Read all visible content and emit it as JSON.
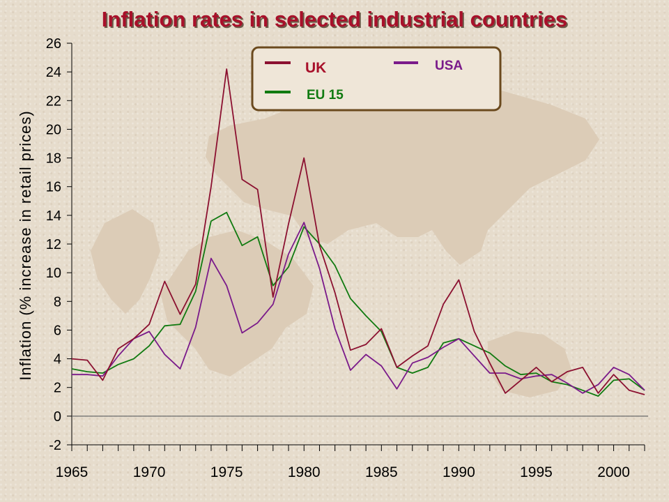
{
  "chart_data": {
    "type": "line",
    "title": "Inflation rates in selected industrial countries",
    "ylabel": "Inflation (% increase in retail prices)",
    "xlabel": "",
    "ylim": [
      -2,
      26
    ],
    "xlim": [
      1965,
      2002
    ],
    "yticks": [
      -2,
      0,
      2,
      4,
      6,
      8,
      10,
      12,
      14,
      16,
      18,
      20,
      22,
      24,
      26
    ],
    "xticks": [
      1965,
      1970,
      1975,
      1980,
      1985,
      1990,
      1995,
      2000
    ],
    "grid": false,
    "legend_position": "top-center",
    "series": [
      {
        "name": "UK",
        "color": "#8b1030",
        "x": [
          1965,
          1966,
          1967,
          1968,
          1969,
          1970,
          1971,
          1972,
          1973,
          1974,
          1975,
          1976,
          1977,
          1978,
          1979,
          1980,
          1981,
          1982,
          1983,
          1984,
          1985,
          1986,
          1987,
          1988,
          1989,
          1990,
          1991,
          1992,
          1993,
          1994,
          1995,
          1996,
          1997,
          1998,
          1999,
          2000,
          2001,
          2002
        ],
        "values": [
          4.0,
          3.9,
          2.5,
          4.7,
          5.4,
          6.4,
          9.4,
          7.1,
          9.2,
          16.0,
          24.2,
          16.5,
          15.8,
          8.3,
          13.4,
          18.0,
          11.9,
          8.6,
          4.6,
          5.0,
          6.1,
          3.4,
          4.2,
          4.9,
          7.8,
          9.5,
          5.9,
          3.7,
          1.6,
          2.5,
          3.4,
          2.4,
          3.1,
          3.4,
          1.6,
          2.9,
          1.8,
          1.5
        ]
      },
      {
        "name": "EU 15",
        "color": "#107a10",
        "x": [
          1965,
          1966,
          1967,
          1968,
          1969,
          1970,
          1971,
          1972,
          1973,
          1974,
          1975,
          1976,
          1977,
          1978,
          1979,
          1980,
          1981,
          1982,
          1983,
          1984,
          1985,
          1986,
          1987,
          1988,
          1989,
          1990,
          1991,
          1992,
          1993,
          1994,
          1995,
          1996,
          1997,
          1998,
          1999,
          2000,
          2001,
          2002
        ],
        "values": [
          3.3,
          3.1,
          3.0,
          3.6,
          4.0,
          4.9,
          6.3,
          6.4,
          8.7,
          13.6,
          14.2,
          11.9,
          12.5,
          9.1,
          10.4,
          13.2,
          12.0,
          10.5,
          8.2,
          7.0,
          5.9,
          3.4,
          3.0,
          3.4,
          5.1,
          5.4,
          4.9,
          4.4,
          3.5,
          2.9,
          3.0,
          2.4,
          2.2,
          1.8,
          1.4,
          2.5,
          2.6,
          1.8
        ]
      },
      {
        "name": "USA",
        "color": "#7a1a8a",
        "x": [
          1965,
          1966,
          1967,
          1968,
          1969,
          1970,
          1971,
          1972,
          1973,
          1974,
          1975,
          1976,
          1977,
          1978,
          1979,
          1980,
          1981,
          1982,
          1983,
          1984,
          1985,
          1986,
          1987,
          1988,
          1989,
          1990,
          1991,
          1992,
          1993,
          1994,
          1995,
          1996,
          1997,
          1998,
          1999,
          2000,
          2001,
          2002
        ],
        "values": [
          2.9,
          2.9,
          2.8,
          4.2,
          5.4,
          5.9,
          4.3,
          3.3,
          6.2,
          11.0,
          9.1,
          5.8,
          6.5,
          7.8,
          11.3,
          13.5,
          10.3,
          6.1,
          3.2,
          4.3,
          3.5,
          1.9,
          3.7,
          4.1,
          4.8,
          5.4,
          4.2,
          3.0,
          3.0,
          2.6,
          2.8,
          2.9,
          2.3,
          1.6,
          2.2,
          3.4,
          2.9,
          1.8
        ]
      }
    ]
  },
  "colors": {
    "title": "#a8102a",
    "axis": "#000000",
    "zero_line": "#666666",
    "legend_border": "#6b4a1e",
    "legend_fill": "#efe6d8",
    "map_fill": "#dcccb7"
  }
}
